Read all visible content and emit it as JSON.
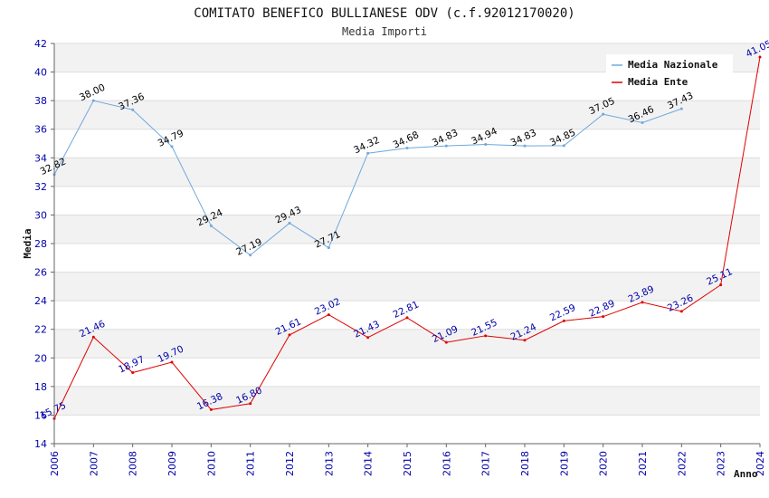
{
  "chart_data": {
    "type": "line",
    "title": "COMITATO BENEFICO BULLIANESE ODV (c.f.92012170020)",
    "subtitle": "Media Importi",
    "ylabel": "Media",
    "xlabel": "Anno",
    "ylim": [
      14,
      42
    ],
    "ytick_step": 2,
    "x": [
      "2006",
      "2007",
      "2008",
      "2009",
      "2010",
      "2011",
      "2012",
      "2013",
      "2014",
      "2015",
      "2016",
      "2017",
      "2018",
      "2019",
      "2020",
      "2021",
      "2022",
      "2023",
      "2024"
    ],
    "series": [
      {
        "name": "Media Nazionale",
        "color": "#6fa8dc",
        "values": [
          32.82,
          38.0,
          37.36,
          34.79,
          29.24,
          27.19,
          29.43,
          27.71,
          34.32,
          34.68,
          34.83,
          34.94,
          34.83,
          34.85,
          37.05,
          36.46,
          37.43,
          null,
          null
        ],
        "labels": [
          "32.82",
          "38.00",
          "37.36",
          "34.79",
          "29.24",
          "27.19",
          "29.43",
          "27.71",
          "34.32",
          "34.68",
          "34.83",
          "34.94",
          "34.83",
          "34.85",
          "37.05",
          "36.46",
          "37.43",
          null,
          null
        ]
      },
      {
        "name": "Media Ente",
        "color": "#e00000",
        "values": [
          15.75,
          21.46,
          18.97,
          19.7,
          16.38,
          16.8,
          21.61,
          23.02,
          21.43,
          22.81,
          21.09,
          21.55,
          21.24,
          22.59,
          22.89,
          23.89,
          23.26,
          25.11,
          41.05
        ],
        "labels": [
          "15.75",
          "21.46",
          "18.97",
          "19.70",
          "16.38",
          "16.80",
          "21.61",
          "23.02",
          "21.43",
          "22.81",
          "21.09",
          "21.55",
          "21.24",
          "22.59",
          "22.89",
          "23.89",
          "23.26",
          "25.11",
          "41.05"
        ]
      }
    ],
    "grid": true,
    "grid_band_color": "#f2f2f2",
    "legend_position": "top-right"
  }
}
